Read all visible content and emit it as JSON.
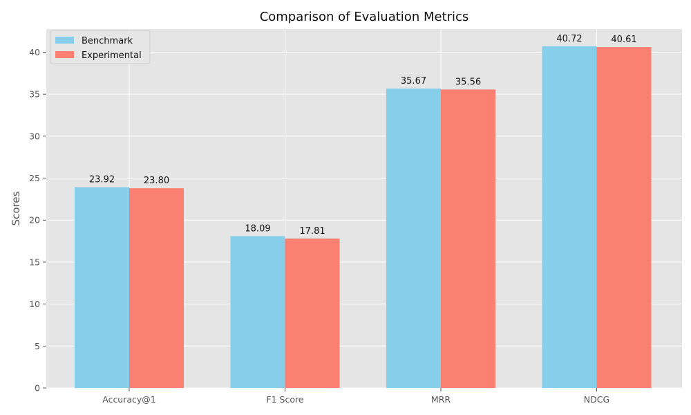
{
  "chart_data": {
    "type": "bar",
    "title": "Comparison of Evaluation Metrics",
    "xlabel": "",
    "ylabel": "Scores",
    "categories": [
      "Accuracy@1",
      "F1 Score",
      "MRR",
      "NDCG"
    ],
    "series": [
      {
        "name": "Benchmark",
        "color": "#87CEEB",
        "values": [
          23.92,
          18.09,
          35.67,
          40.72
        ],
        "labels": [
          "23.92",
          "18.09",
          "35.67",
          "40.72"
        ]
      },
      {
        "name": "Experimental",
        "color": "#FA8072",
        "values": [
          23.8,
          17.81,
          35.56,
          40.61
        ],
        "labels": [
          "23.80",
          "17.81",
          "35.56",
          "40.61"
        ]
      }
    ],
    "yticks": [
      0,
      5,
      10,
      15,
      20,
      25,
      30,
      35,
      40
    ],
    "ylim": [
      0,
      42.76
    ],
    "grid": true,
    "legend_position": "top-left",
    "background_color": "#E5E5E5",
    "grid_color": "#FFFFFF"
  }
}
